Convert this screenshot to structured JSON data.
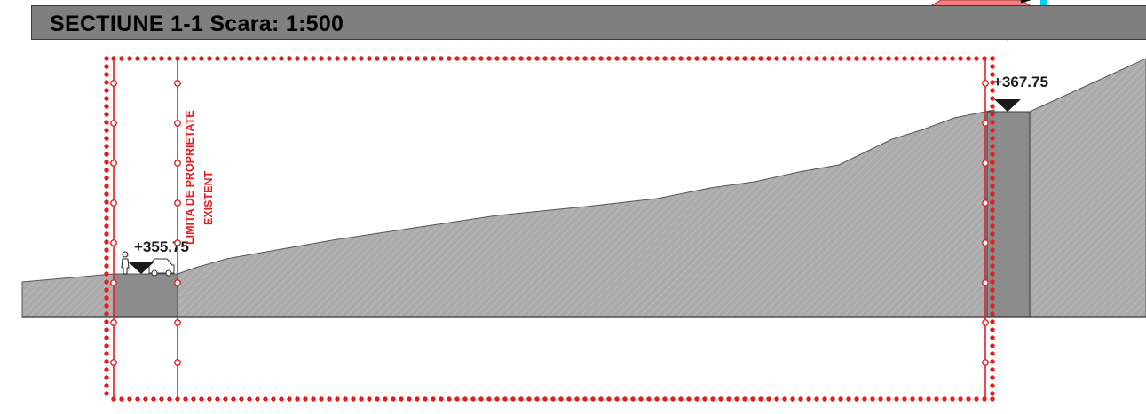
{
  "header": {
    "title": "SECTIUNE 1-1 Scara: 1:500"
  },
  "levels": {
    "left": "+355.75",
    "right": "+367.75"
  },
  "property_limit": {
    "line1": "LIMITA DE PROPRIETATE",
    "line2": "EXISTENT"
  },
  "colors": {
    "title_bar": "#7f7f7f",
    "terrain": "#a9a9a9",
    "cut": "#8c8c8c",
    "boundary": "#e41e1e",
    "marker": "#1a1a1a",
    "top_right_shape": "#f08080",
    "top_right_accent": "#00d0e8"
  },
  "icons": [
    "person-icon",
    "car-icon",
    "elevation-marker-icon",
    "elevation-marker-icon"
  ]
}
